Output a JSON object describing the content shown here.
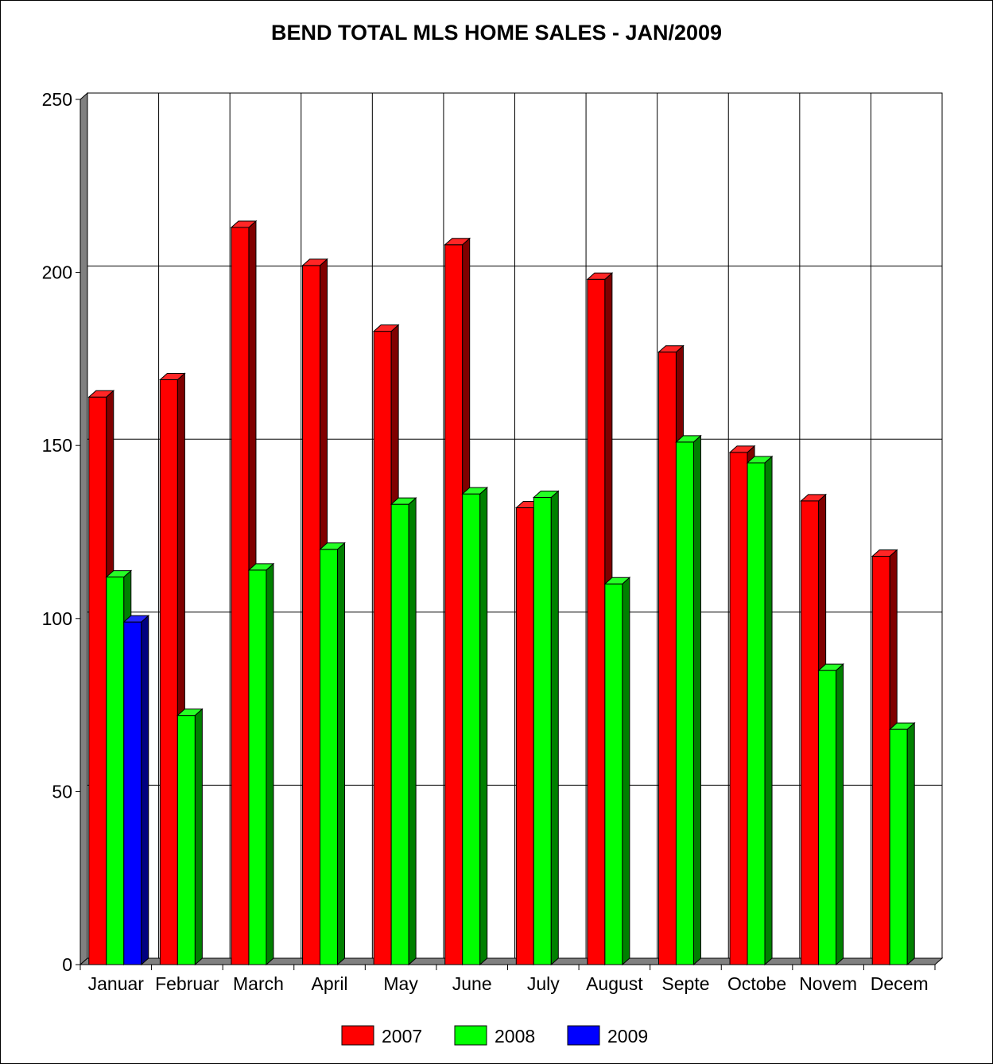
{
  "chart_data": {
    "type": "bar",
    "title": "BEND TOTAL MLS HOME SALES - JAN/2009",
    "categories": [
      "Januar",
      "Februar",
      "March",
      "April",
      "May",
      "June",
      "July",
      "August",
      "Septe",
      "Octobe",
      "Novem",
      "Decem"
    ],
    "series": [
      {
        "name": "2007",
        "color": "#ff0000",
        "values": [
          164,
          169,
          213,
          202,
          183,
          208,
          132,
          198,
          177,
          148,
          134,
          118
        ]
      },
      {
        "name": "2008",
        "color": "#00ff00",
        "values": [
          112,
          72,
          114,
          120,
          133,
          136,
          135,
          110,
          151,
          145,
          85,
          68
        ]
      },
      {
        "name": "2009",
        "color": "#0000ff",
        "values": [
          99,
          null,
          null,
          null,
          null,
          null,
          null,
          null,
          null,
          null,
          null,
          null
        ]
      }
    ],
    "ylim": [
      0,
      250
    ],
    "yticks": [
      0,
      50,
      100,
      150,
      200,
      250
    ],
    "grid": true,
    "legend": "bottom-center"
  }
}
